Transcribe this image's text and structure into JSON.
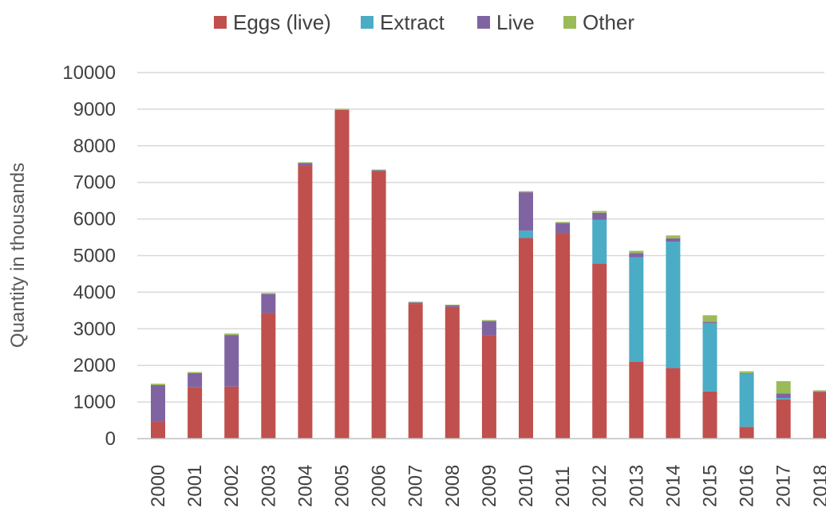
{
  "chart_data": {
    "type": "bar",
    "stacked": true,
    "title": "",
    "xlabel": "",
    "ylabel": "Quantity in thousands",
    "ylim": [
      0,
      10000
    ],
    "yticks": [
      0,
      1000,
      2000,
      3000,
      4000,
      5000,
      6000,
      7000,
      8000,
      9000,
      10000
    ],
    "grid": true,
    "legend_position": "top",
    "categories": [
      "2000",
      "2001",
      "2002",
      "2003",
      "2004",
      "2005",
      "2006",
      "2007",
      "2008",
      "2009",
      "2010",
      "2011",
      "2012",
      "2013",
      "2014",
      "2015",
      "2016",
      "2017",
      "2018"
    ],
    "series": [
      {
        "name": "Eggs (live)",
        "color": "#c0504d",
        "values": [
          470,
          1400,
          1420,
          3430,
          7450,
          8980,
          7300,
          3680,
          3600,
          2830,
          5480,
          5620,
          4780,
          2100,
          1930,
          1290,
          320,
          1070,
          1270
        ]
      },
      {
        "name": "Extract",
        "color": "#4bacc6",
        "values": [
          0,
          0,
          0,
          0,
          0,
          0,
          0,
          0,
          0,
          0,
          200,
          0,
          1200,
          2850,
          3450,
          1870,
          1450,
          40,
          0
        ]
      },
      {
        "name": "Live",
        "color": "#8064a2",
        "values": [
          990,
          390,
          1410,
          520,
          80,
          0,
          30,
          40,
          40,
          380,
          1050,
          270,
          190,
          120,
          90,
          30,
          20,
          120,
          20
        ]
      },
      {
        "name": "Other",
        "color": "#9bbb59",
        "values": [
          40,
          30,
          40,
          30,
          20,
          30,
          20,
          20,
          20,
          30,
          30,
          30,
          50,
          60,
          80,
          180,
          50,
          340,
          30
        ]
      }
    ]
  }
}
